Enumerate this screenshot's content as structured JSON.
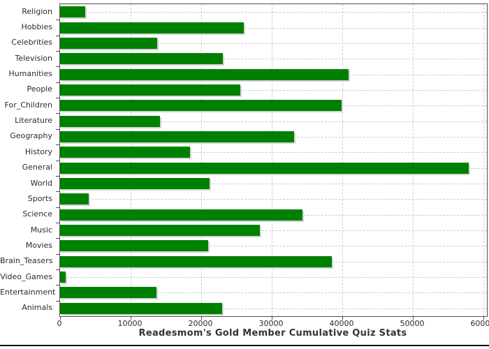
{
  "chart_data": {
    "type": "bar",
    "orientation": "horizontal",
    "title": "Readesmom's Gold Member Cumulative Quiz Stats",
    "xlabel": "",
    "ylabel": "",
    "categories": [
      "Religion",
      "Hobbies",
      "Celebrities",
      "Television",
      "Humanities",
      "People",
      "For_Children",
      "Literature",
      "Geography",
      "History",
      "General",
      "World",
      "Sports",
      "Science",
      "Music",
      "Movies",
      "Brain_Teasers",
      "Video_Games",
      "Entertainment",
      "Animals"
    ],
    "values": [
      3600,
      26000,
      13800,
      23100,
      40900,
      25500,
      39900,
      14200,
      33200,
      18400,
      57900,
      21200,
      4100,
      34400,
      28300,
      21000,
      38500,
      800,
      13700,
      23000
    ],
    "x_ticks": [
      0,
      10000,
      20000,
      30000,
      40000,
      50000,
      60000
    ],
    "x_tick_labels": [
      "0",
      "10000",
      "20000",
      "30000",
      "40000",
      "50000",
      "60000"
    ],
    "xlim": [
      0,
      60500
    ],
    "grid": "dashed, both axes",
    "legend": "none",
    "colors": {
      "bar": "#008000",
      "bar_shadow": "#d6d6d6",
      "gridline": "#cccccc",
      "axis": "#4d4d4d",
      "title_text": "#333333",
      "tick_text": "#2b2b2b",
      "background": "#ffffff",
      "bottom_rule": "#000000"
    }
  }
}
